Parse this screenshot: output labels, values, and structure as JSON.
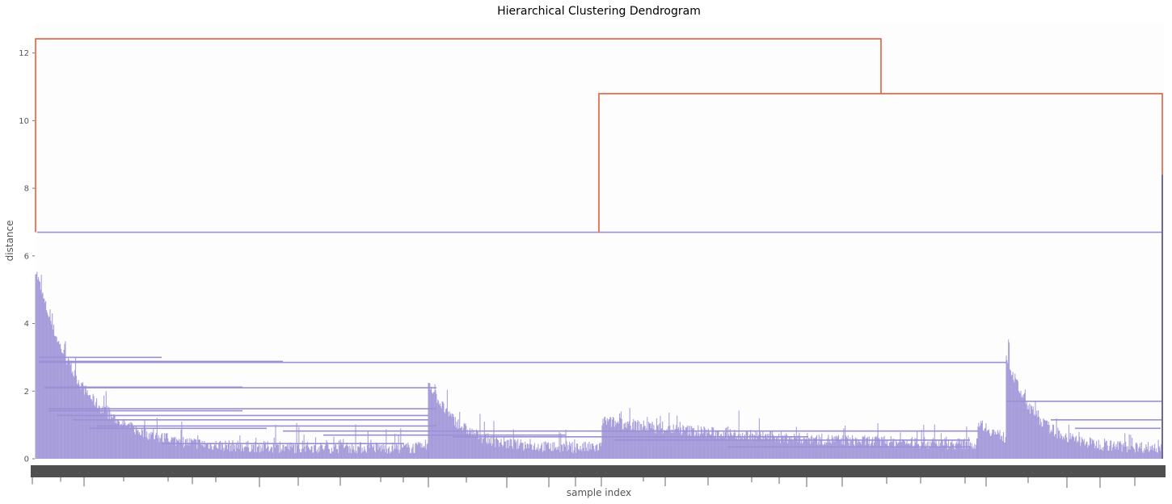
{
  "chart_data": {
    "type": "dendrogram",
    "title": "Hierarchical Clustering Dendrogram",
    "xlabel": "sample index",
    "ylabel": "distance",
    "ylim": [
      0,
      12.9
    ],
    "yticks": [
      "0",
      "2",
      "4",
      "6",
      "8",
      "10",
      "12"
    ],
    "grid": false,
    "colors": {
      "above_threshold": "#e0603d",
      "cluster_main": "#9b8fd6",
      "cluster_small": "#6f6a8a",
      "plot_background": "#fdfdfd",
      "axis_text": "#555555"
    },
    "merges": [
      {
        "id": "root",
        "height": 12.42,
        "children": [
          "A",
          "B"
        ],
        "color": "above_threshold"
      },
      {
        "id": "B",
        "height": 10.8,
        "children": [
          "C",
          "D"
        ],
        "color": "above_threshold"
      },
      {
        "id": "A",
        "height": 6.7,
        "color": "cluster_main",
        "note_index_span": [
          0,
          0.5
        ]
      },
      {
        "id": "C",
        "height": 6.7,
        "color": "cluster_main"
      },
      {
        "id": "D",
        "height": 8.4,
        "color": "cluster_small"
      }
    ],
    "cluster_merge_heights": [
      6.7,
      5.45,
      4.4,
      3.0,
      2.9,
      2.85,
      2.1,
      1.7,
      1.5,
      1.2,
      0.9,
      0.8
    ]
  }
}
